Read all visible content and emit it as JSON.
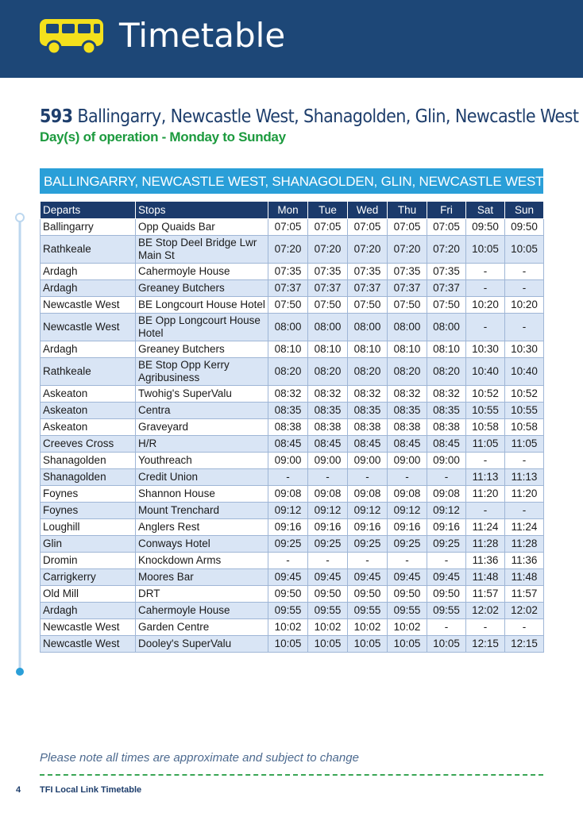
{
  "header": {
    "title": "Timetable"
  },
  "route": {
    "number": "593",
    "name": "Ballingarry, Newcastle West, Shanagolden, Glin, Newcastle West",
    "operation": "Day(s) of operation - Monday to Sunday"
  },
  "table": {
    "banner": "BALLINGARRY, NEWCASTLE WEST, SHANAGOLDEN, GLIN, NEWCASTLE WEST",
    "columns": [
      "Departs",
      "Stops",
      "Mon",
      "Tue",
      "Wed",
      "Thu",
      "Fri",
      "Sat",
      "Sun"
    ],
    "rows": [
      [
        "Ballingarry",
        "Opp Quaids Bar",
        "07:05",
        "07:05",
        "07:05",
        "07:05",
        "07:05",
        "09:50",
        "09:50"
      ],
      [
        "Rathkeale",
        "BE Stop Deel Bridge Lwr Main St",
        "07:20",
        "07:20",
        "07:20",
        "07:20",
        "07:20",
        "10:05",
        "10:05"
      ],
      [
        "Ardagh",
        "Cahermoyle House",
        "07:35",
        "07:35",
        "07:35",
        "07:35",
        "07:35",
        "-",
        "-"
      ],
      [
        "Ardagh",
        "Greaney Butchers",
        "07:37",
        "07:37",
        "07:37",
        "07:37",
        "07:37",
        "-",
        "-"
      ],
      [
        "Newcastle West",
        "BE Longcourt House Hotel",
        "07:50",
        "07:50",
        "07:50",
        "07:50",
        "07:50",
        "10:20",
        "10:20"
      ],
      [
        "Newcastle West",
        "BE Opp Longcourt House Hotel",
        "08:00",
        "08:00",
        "08:00",
        "08:00",
        "08:00",
        "-",
        "-"
      ],
      [
        "Ardagh",
        "Greaney Butchers",
        "08:10",
        "08:10",
        "08:10",
        "08:10",
        "08:10",
        "10:30",
        "10:30"
      ],
      [
        "Rathkeale",
        "BE Stop Opp Kerry Agribusiness",
        "08:20",
        "08:20",
        "08:20",
        "08:20",
        "08:20",
        "10:40",
        "10:40"
      ],
      [
        "Askeaton",
        "Twohig's SuperValu",
        "08:32",
        "08:32",
        "08:32",
        "08:32",
        "08:32",
        "10:52",
        "10:52"
      ],
      [
        "Askeaton",
        "Centra",
        "08:35",
        "08:35",
        "08:35",
        "08:35",
        "08:35",
        "10:55",
        "10:55"
      ],
      [
        "Askeaton",
        "Graveyard",
        "08:38",
        "08:38",
        "08:38",
        "08:38",
        "08:38",
        "10:58",
        "10:58"
      ],
      [
        "Creeves Cross",
        "H/R",
        "08:45",
        "08:45",
        "08:45",
        "08:45",
        "08:45",
        "11:05",
        "11:05"
      ],
      [
        "Shanagolden",
        "Youthreach",
        "09:00",
        "09:00",
        "09:00",
        "09:00",
        "09:00",
        "-",
        "-"
      ],
      [
        "Shanagolden",
        "Credit Union",
        "-",
        "-",
        "-",
        "-",
        "-",
        "11:13",
        "11:13"
      ],
      [
        "Foynes",
        "Shannon House",
        "09:08",
        "09:08",
        "09:08",
        "09:08",
        "09:08",
        "11:20",
        "11:20"
      ],
      [
        "Foynes",
        "Mount Trenchard",
        "09:12",
        "09:12",
        "09:12",
        "09:12",
        "09:12",
        "-",
        "-"
      ],
      [
        "Loughill",
        "Anglers Rest",
        "09:16",
        "09:16",
        "09:16",
        "09:16",
        "09:16",
        "11:24",
        "11:24"
      ],
      [
        "Glin",
        "Conways Hotel",
        "09:25",
        "09:25",
        "09:25",
        "09:25",
        "09:25",
        "11:28",
        "11:28"
      ],
      [
        "Dromin",
        "Knockdown Arms",
        "-",
        "-",
        "-",
        "-",
        "-",
        "11:36",
        "11:36"
      ],
      [
        "Carrigkerry",
        "Moores Bar",
        "09:45",
        "09:45",
        "09:45",
        "09:45",
        "09:45",
        "11:48",
        "11:48"
      ],
      [
        "Old Mill",
        "DRT",
        "09:50",
        "09:50",
        "09:50",
        "09:50",
        "09:50",
        "11:57",
        "11:57"
      ],
      [
        "Ardagh",
        "Cahermoyle House",
        "09:55",
        "09:55",
        "09:55",
        "09:55",
        "09:55",
        "12:02",
        "12:02"
      ],
      [
        "Newcastle West",
        "Garden Centre",
        "10:02",
        "10:02",
        "10:02",
        "10:02",
        "-",
        "-",
        "-"
      ],
      [
        "Newcastle West",
        "Dooley's SuperValu",
        "10:05",
        "10:05",
        "10:05",
        "10:05",
        "10:05",
        "12:15",
        "12:15"
      ]
    ]
  },
  "footer": {
    "note": "Please note all times are approximate and subject to change",
    "page": "4",
    "label": "TFI Local Link Timetable"
  }
}
